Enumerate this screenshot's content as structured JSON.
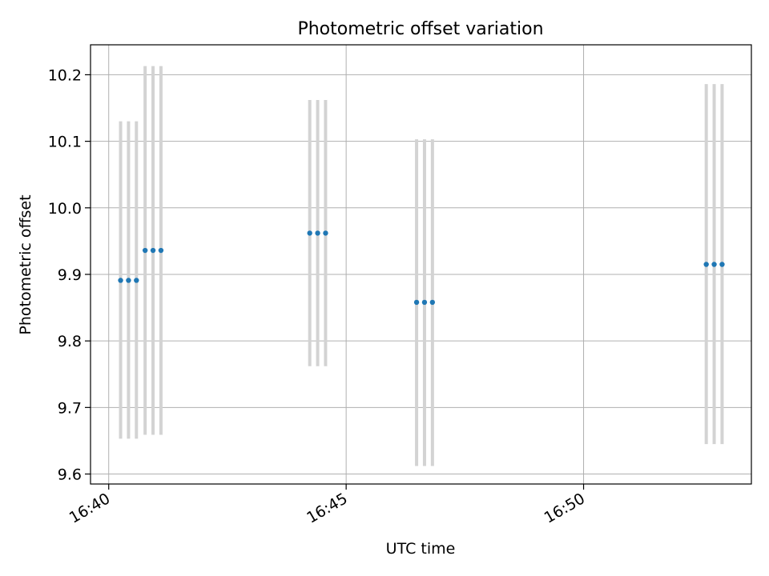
{
  "chart_data": {
    "type": "scatter",
    "title": "Photometric offset variation",
    "xlabel": "UTC time",
    "ylabel": "Photometric offset",
    "x_ticks": [
      "16:40",
      "16:45",
      "16:50"
    ],
    "y_ticks": [
      "9.6",
      "9.7",
      "9.8",
      "9.9",
      "10.0",
      "10.1",
      "10.2"
    ],
    "xlim": [
      "16:39:37",
      "16:53:32"
    ],
    "ylim": [
      9.585,
      10.245
    ],
    "grid": true,
    "point_color": "#1f77b4",
    "errorbar_color": "#d3d3d3",
    "points": [
      {
        "x": "16:40:15",
        "y": 9.891,
        "ymin": 9.653,
        "ymax": 10.13
      },
      {
        "x": "16:40:25",
        "y": 9.891,
        "ymin": 9.653,
        "ymax": 10.13
      },
      {
        "x": "16:40:35",
        "y": 9.891,
        "ymin": 9.653,
        "ymax": 10.13
      },
      {
        "x": "16:40:46",
        "y": 9.936,
        "ymin": 9.659,
        "ymax": 10.213
      },
      {
        "x": "16:40:56",
        "y": 9.936,
        "ymin": 9.659,
        "ymax": 10.213
      },
      {
        "x": "16:41:06",
        "y": 9.936,
        "ymin": 9.659,
        "ymax": 10.213
      },
      {
        "x": "16:44:14",
        "y": 9.962,
        "ymin": 9.762,
        "ymax": 10.162
      },
      {
        "x": "16:44:24",
        "y": 9.962,
        "ymin": 9.762,
        "ymax": 10.162
      },
      {
        "x": "16:44:34",
        "y": 9.962,
        "ymin": 9.762,
        "ymax": 10.162
      },
      {
        "x": "16:46:29",
        "y": 9.858,
        "ymin": 9.612,
        "ymax": 10.103
      },
      {
        "x": "16:46:39",
        "y": 9.858,
        "ymin": 9.612,
        "ymax": 10.103
      },
      {
        "x": "16:46:49",
        "y": 9.858,
        "ymin": 9.612,
        "ymax": 10.103
      },
      {
        "x": "16:52:35",
        "y": 9.915,
        "ymin": 9.645,
        "ymax": 10.186
      },
      {
        "x": "16:52:45",
        "y": 9.915,
        "ymin": 9.645,
        "ymax": 10.186
      },
      {
        "x": "16:52:55",
        "y": 9.915,
        "ymin": 9.645,
        "ymax": 10.186
      }
    ]
  }
}
